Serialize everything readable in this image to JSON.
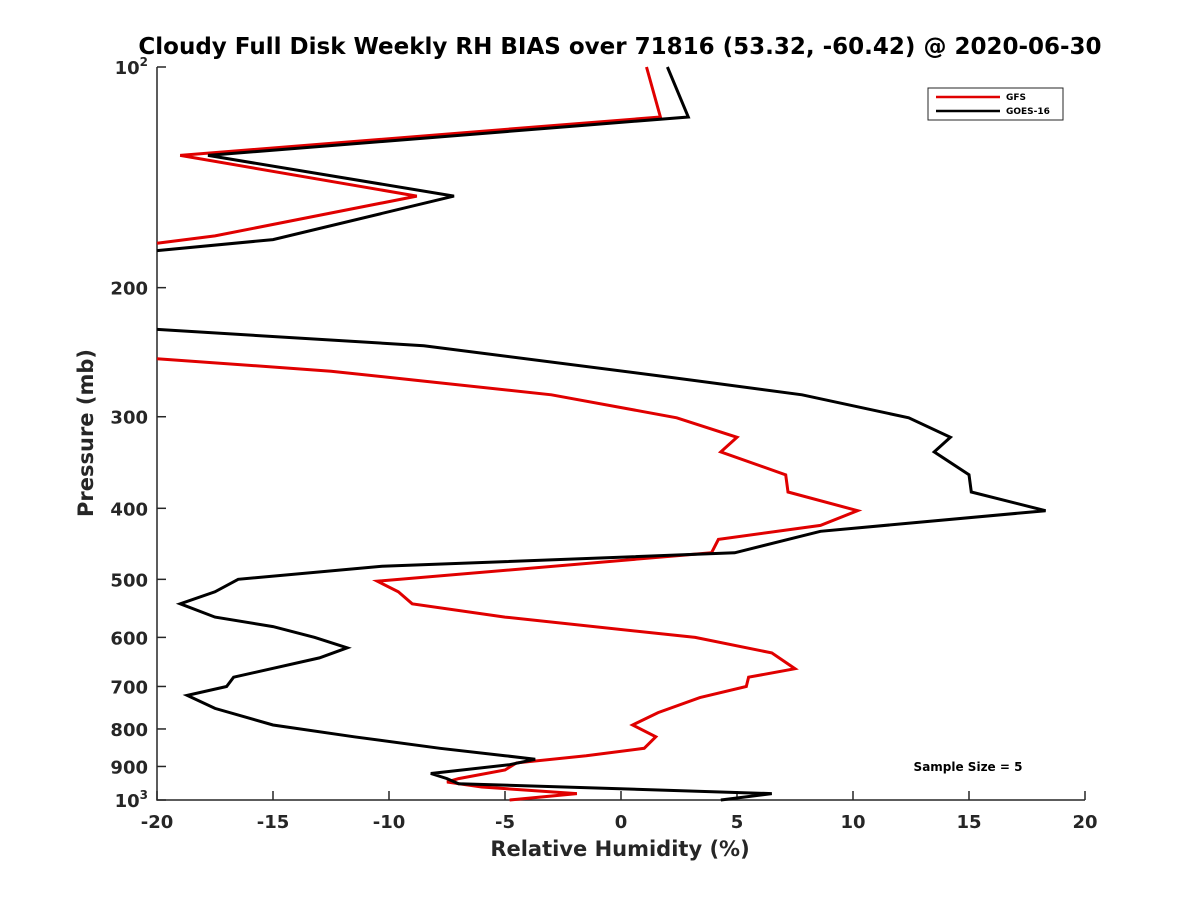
{
  "chart_data": {
    "type": "line",
    "title": "Cloudy Full Disk Weekly RH BIAS over 71816 (53.32, -60.42) @ 2020-06-30",
    "xlabel": "Relative Humidity (%)",
    "ylabel": "Pressure (mb)",
    "xlim": [
      -20,
      20
    ],
    "ylim": [
      100,
      1000
    ],
    "yscale": "log",
    "yreversed": true,
    "xticks": [
      -20,
      -15,
      -10,
      -5,
      0,
      5,
      10,
      15,
      20
    ],
    "yticks": [
      {
        "value": 100,
        "base": "10",
        "exp": "2"
      },
      {
        "value": 200,
        "label": "200"
      },
      {
        "value": 300,
        "label": "300"
      },
      {
        "value": 400,
        "label": "400"
      },
      {
        "value": 500,
        "label": "500"
      },
      {
        "value": 600,
        "label": "600"
      },
      {
        "value": 700,
        "label": "700"
      },
      {
        "value": 800,
        "label": "800"
      },
      {
        "value": 900,
        "label": "900"
      },
      {
        "value": 1000,
        "base": "10",
        "exp": "3"
      }
    ],
    "grid": false,
    "legend": "top-right",
    "annotation": "Sample Size = 5",
    "series": [
      {
        "name": "GFS",
        "color": "#e00000",
        "points": [
          [
            1.1,
            100
          ],
          [
            1.7,
            117
          ],
          [
            -19.0,
            132
          ],
          [
            -8.8,
            150
          ],
          [
            -17.5,
            170
          ],
          [
            -20.0,
            174
          ],
          [
            null,
            240
          ],
          [
            -20.0,
            250
          ],
          [
            -12.5,
            260
          ],
          [
            -3.0,
            280
          ],
          [
            2.4,
            301
          ],
          [
            5.0,
            320
          ],
          [
            4.3,
            335
          ],
          [
            7.1,
            360
          ],
          [
            7.2,
            380
          ],
          [
            10.2,
            403
          ],
          [
            8.6,
            422
          ],
          [
            4.2,
            441
          ],
          [
            3.9,
            460
          ],
          [
            -10.5,
            503
          ],
          [
            -9.6,
            520
          ],
          [
            -9.0,
            540
          ],
          [
            -5.0,
            563
          ],
          [
            3.2,
            600
          ],
          [
            6.5,
            630
          ],
          [
            7.5,
            662
          ],
          [
            5.5,
            680
          ],
          [
            5.4,
            700
          ],
          [
            3.4,
            725
          ],
          [
            1.6,
            760
          ],
          [
            0.5,
            790
          ],
          [
            1.5,
            820
          ],
          [
            1.0,
            850
          ],
          [
            -1.5,
            870
          ],
          [
            -4.5,
            890
          ],
          [
            -5.0,
            910
          ],
          [
            -7.0,
            935
          ],
          [
            -7.5,
            945
          ],
          [
            -6.0,
            960
          ],
          [
            -1.9,
            980
          ],
          [
            -4.8,
            1000
          ]
        ]
      },
      {
        "name": "GOES-16",
        "color": "#000000",
        "points": [
          [
            2.0,
            100
          ],
          [
            2.9,
            117
          ],
          [
            -17.8,
            132
          ],
          [
            -7.2,
            150
          ],
          [
            -15.0,
            172
          ],
          [
            -20.0,
            178
          ],
          [
            null,
            225
          ],
          [
            -20.0,
            228
          ],
          [
            -8.5,
            240
          ],
          [
            2.1,
            265
          ],
          [
            7.8,
            280
          ],
          [
            12.4,
            301
          ],
          [
            14.2,
            320
          ],
          [
            13.5,
            335
          ],
          [
            15.0,
            360
          ],
          [
            15.1,
            380
          ],
          [
            18.3,
            403
          ],
          [
            8.6,
            430
          ],
          [
            4.9,
            460
          ],
          [
            -10.3,
            480
          ],
          [
            -16.5,
            500
          ],
          [
            -17.5,
            520
          ],
          [
            -19.0,
            540
          ],
          [
            -17.5,
            563
          ],
          [
            -15.0,
            580
          ],
          [
            -13.2,
            600
          ],
          [
            -11.8,
            620
          ],
          [
            -13.0,
            640
          ],
          [
            -16.7,
            680
          ],
          [
            -17.0,
            700
          ],
          [
            -18.7,
            720
          ],
          [
            -17.5,
            750
          ],
          [
            -15.0,
            790
          ],
          [
            -11.5,
            820
          ],
          [
            -7.8,
            850
          ],
          [
            -5.0,
            870
          ],
          [
            -3.7,
            880
          ],
          [
            -4.8,
            895
          ],
          [
            -8.2,
            920
          ],
          [
            -7.5,
            935
          ],
          [
            -7.0,
            950
          ],
          [
            6.5,
            980
          ],
          [
            4.3,
            1000
          ]
        ]
      }
    ]
  }
}
